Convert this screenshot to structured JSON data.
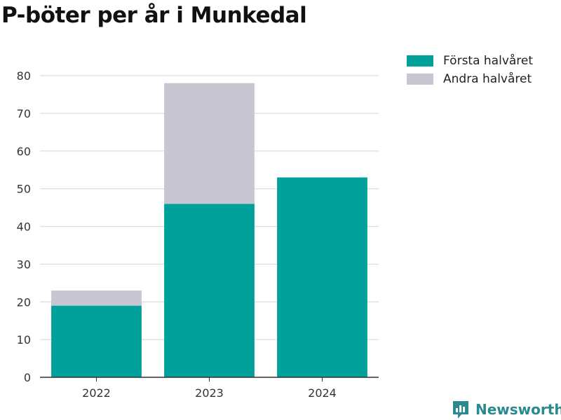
{
  "title": "P-böter per år i Munkedal",
  "chart_data": {
    "type": "bar",
    "stacked": true,
    "categories": [
      "2022",
      "2023",
      "2024"
    ],
    "series": [
      {
        "name": "Första halvåret",
        "values": [
          19,
          46,
          53
        ],
        "color": "#00a19a"
      },
      {
        "name": "Andra halvåret",
        "values": [
          4,
          32,
          0
        ],
        "color": "#c8c6d1"
      }
    ],
    "y_ticks": [
      0,
      10,
      20,
      30,
      40,
      50,
      60,
      70,
      80
    ],
    "ylim": [
      0,
      80
    ],
    "grid": true,
    "legend_position": "top-right"
  },
  "logo": {
    "text": "Newsworthy",
    "icon": "newsworthy-logo-icon",
    "color": "#2b8a8d"
  }
}
